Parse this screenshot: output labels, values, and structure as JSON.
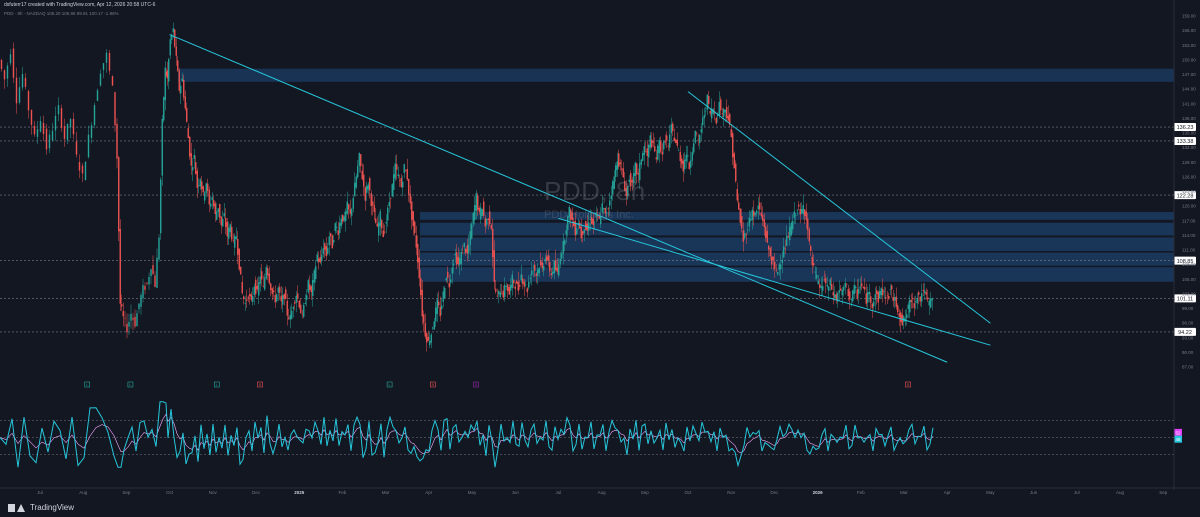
{
  "header": {
    "created_by": "dsfuterr17 created with TradingView.com, Apr 12, 2026 20:58 UTC-6",
    "symbol_legend": "PDD · 8h · NASDAQ  105.20  105.86  99.91  100.17  -1.96%"
  },
  "watermark": {
    "ticker": "PDD, 8h",
    "company": "PDD Holdings Inc."
  },
  "footer": {
    "brand": "TradingView"
  },
  "colors": {
    "background": "#131722",
    "bull": "#26a69a",
    "bear": "#ef5350",
    "trendline": "#26c6da",
    "zone": "#1e4a7d",
    "rsi": "#26c6da",
    "rsi_ma": "#ffffff",
    "signal_ma": "#9c27b0",
    "grid": "#787b86"
  },
  "chart_data": {
    "type": "candlestick",
    "title": "PDD, 8h",
    "ylim": [
      86,
      159
    ],
    "x_ticks": [
      "Jul",
      "Aug",
      "Sep",
      "Oct",
      "Nov",
      "Dec",
      "2025",
      "Feb",
      "Mar",
      "Apr",
      "May",
      "Jun",
      "Jul",
      "Aug",
      "Sep",
      "Oct",
      "Nov",
      "Dec",
      "2026",
      "Feb",
      "Mar",
      "Apr",
      "May",
      "Jun",
      "Jul",
      "Aug",
      "Sep",
      "Oct"
    ],
    "y_ticks": [
      159,
      156,
      153,
      150,
      147,
      144,
      141,
      138,
      135,
      132,
      129,
      126,
      123,
      120,
      117,
      114,
      111,
      108,
      105,
      102,
      99,
      96,
      93,
      90,
      87
    ],
    "price_levels": [
      {
        "label": "136.23",
        "value": 136.23
      },
      {
        "label": "133.38",
        "value": 133.38
      },
      {
        "label": "122.28",
        "value": 122.28
      },
      {
        "label": "108.85",
        "value": 108.85
      },
      {
        "label": "101.11",
        "value": 101.11
      },
      {
        "label": "94.22",
        "value": 94.22
      }
    ],
    "supply_demand_zones": [
      {
        "low": 145.5,
        "high": 148.2
      },
      {
        "low": 117.2,
        "high": 118.8
      },
      {
        "low": 114.0,
        "high": 116.6
      },
      {
        "low": 110.8,
        "high": 113.6
      },
      {
        "low": 107.8,
        "high": 110.5
      },
      {
        "low": 104.5,
        "high": 107.5
      }
    ],
    "trendlines": [
      {
        "from": [
          "Oct",
          155.2
        ],
        "to": [
          "Apr",
          88.0
        ],
        "to_date": "2026-04"
      },
      {
        "from": [
          "Jul",
          117.5
        ],
        "to": [
          "May",
          91.5
        ],
        "to_date": "2026-05"
      },
      {
        "from": [
          "Oct",
          143.5
        ],
        "to": [
          "May",
          96.0
        ],
        "to_date": "2026-05"
      }
    ],
    "price_path": [
      [
        0,
        150
      ],
      [
        6,
        146
      ],
      [
        12,
        152
      ],
      [
        18,
        142
      ],
      [
        24,
        147
      ],
      [
        30,
        140
      ],
      [
        36,
        134
      ],
      [
        42,
        138
      ],
      [
        48,
        132
      ],
      [
        54,
        136
      ],
      [
        60,
        140
      ],
      [
        66,
        134
      ],
      [
        72,
        138
      ],
      [
        78,
        130
      ],
      [
        84,
        126
      ],
      [
        90,
        134
      ],
      [
        96,
        141
      ],
      [
        102,
        148
      ],
      [
        108,
        151
      ],
      [
        114,
        144
      ],
      [
        118,
        130
      ],
      [
        121,
        100
      ],
      [
        124,
        97
      ],
      [
        128,
        95
      ],
      [
        132,
        98
      ],
      [
        136,
        96
      ],
      [
        140,
        100
      ],
      [
        144,
        103
      ],
      [
        148,
        104
      ],
      [
        152,
        108
      ],
      [
        156,
        104
      ],
      [
        160,
        114
      ],
      [
        163,
        137
      ],
      [
        166,
        148
      ],
      [
        168,
        146
      ],
      [
        171,
        154
      ],
      [
        174,
        156
      ],
      [
        177,
        150
      ],
      [
        180,
        144
      ],
      [
        183,
        146
      ],
      [
        186,
        140
      ],
      [
        189,
        134
      ],
      [
        192,
        128
      ],
      [
        195,
        130
      ],
      [
        198,
        124
      ],
      [
        201,
        126
      ],
      [
        204,
        122
      ],
      [
        207,
        125
      ],
      [
        210,
        120
      ],
      [
        213,
        122
      ],
      [
        216,
        118
      ],
      [
        219,
        120
      ],
      [
        222,
        116
      ],
      [
        225,
        118
      ],
      [
        228,
        114
      ],
      [
        231,
        116
      ],
      [
        234,
        112
      ],
      [
        237,
        114
      ],
      [
        240,
        108
      ],
      [
        243,
        102
      ],
      [
        246,
        100
      ],
      [
        249,
        102
      ],
      [
        252,
        100
      ],
      [
        255,
        104
      ],
      [
        258,
        102
      ],
      [
        261,
        106
      ],
      [
        264,
        103
      ],
      [
        267,
        108
      ],
      [
        270,
        105
      ],
      [
        273,
        102
      ],
      [
        276,
        101
      ],
      [
        279,
        103
      ],
      [
        282,
        100
      ],
      [
        285,
        102
      ],
      [
        288,
        98
      ],
      [
        291,
        97
      ],
      [
        294,
        100
      ],
      [
        297,
        102
      ],
      [
        300,
        100
      ],
      [
        303,
        97
      ],
      [
        306,
        101
      ],
      [
        309,
        104
      ],
      [
        312,
        102
      ],
      [
        315,
        106
      ],
      [
        318,
        110
      ],
      [
        321,
        108
      ],
      [
        324,
        112
      ],
      [
        327,
        110
      ],
      [
        330,
        114
      ],
      [
        333,
        112
      ],
      [
        336,
        116
      ],
      [
        339,
        115
      ],
      [
        342,
        118
      ],
      [
        345,
        117
      ],
      [
        348,
        120
      ],
      [
        351,
        118
      ],
      [
        354,
        122
      ],
      [
        357,
        126
      ],
      [
        360,
        130
      ],
      [
        363,
        126
      ],
      [
        366,
        122
      ],
      [
        369,
        125
      ],
      [
        372,
        121
      ],
      [
        375,
        118
      ],
      [
        378,
        115
      ],
      [
        381,
        118
      ],
      [
        384,
        114
      ],
      [
        387,
        117
      ],
      [
        390,
        121
      ],
      [
        393,
        124
      ],
      [
        396,
        128
      ],
      [
        399,
        126
      ],
      [
        402,
        124
      ],
      [
        405,
        128
      ],
      [
        408,
        126
      ],
      [
        411,
        120
      ],
      [
        414,
        116
      ],
      [
        417,
        112
      ],
      [
        420,
        106
      ],
      [
        423,
        98
      ],
      [
        426,
        94
      ],
      [
        429,
        92
      ],
      [
        432,
        94
      ],
      [
        435,
        97
      ],
      [
        438,
        100
      ],
      [
        441,
        98
      ],
      [
        444,
        102
      ],
      [
        447,
        106
      ],
      [
        450,
        104
      ],
      [
        453,
        108
      ],
      [
        456,
        110
      ],
      [
        459,
        108
      ],
      [
        462,
        110
      ],
      [
        465,
        112
      ],
      [
        468,
        110
      ],
      [
        471,
        114
      ],
      [
        474,
        118
      ],
      [
        477,
        122
      ],
      [
        480,
        118
      ],
      [
        483,
        120
      ],
      [
        486,
        116
      ],
      [
        489,
        118
      ],
      [
        492,
        116
      ],
      [
        495,
        104
      ],
      [
        498,
        101
      ],
      [
        501,
        103
      ],
      [
        504,
        102
      ],
      [
        507,
        104
      ],
      [
        510,
        102
      ],
      [
        513,
        105
      ],
      [
        516,
        104
      ],
      [
        519,
        103
      ],
      [
        522,
        106
      ],
      [
        525,
        104
      ],
      [
        528,
        103
      ],
      [
        531,
        106
      ],
      [
        534,
        108
      ],
      [
        537,
        106
      ],
      [
        540,
        108
      ],
      [
        543,
        107
      ],
      [
        546,
        110
      ],
      [
        549,
        108
      ],
      [
        552,
        106
      ],
      [
        555,
        108
      ],
      [
        558,
        106
      ],
      [
        561,
        110
      ],
      [
        564,
        112
      ],
      [
        567,
        116
      ],
      [
        570,
        119
      ],
      [
        573,
        117
      ],
      [
        576,
        115
      ],
      [
        579,
        117
      ],
      [
        582,
        114
      ],
      [
        585,
        116
      ],
      [
        588,
        115
      ],
      [
        591,
        118
      ],
      [
        594,
        116
      ],
      [
        597,
        118
      ],
      [
        600,
        117
      ],
      [
        603,
        120
      ],
      [
        606,
        118
      ],
      [
        609,
        120
      ],
      [
        612,
        123
      ],
      [
        615,
        126
      ],
      [
        618,
        130
      ],
      [
        621,
        128
      ],
      [
        624,
        126
      ],
      [
        627,
        122
      ],
      [
        630,
        126
      ],
      [
        633,
        124
      ],
      [
        636,
        128
      ],
      [
        639,
        126
      ],
      [
        642,
        130
      ],
      [
        645,
        132
      ],
      [
        648,
        130
      ],
      [
        651,
        134
      ],
      [
        654,
        132
      ],
      [
        657,
        130
      ],
      [
        660,
        133
      ],
      [
        663,
        131
      ],
      [
        666,
        134
      ],
      [
        669,
        132
      ],
      [
        672,
        136
      ],
      [
        675,
        134
      ],
      [
        678,
        132
      ],
      [
        681,
        130
      ],
      [
        684,
        128
      ],
      [
        687,
        131
      ],
      [
        690,
        128
      ],
      [
        693,
        132
      ],
      [
        696,
        135
      ],
      [
        699,
        133
      ],
      [
        702,
        136
      ],
      [
        705,
        139
      ],
      [
        708,
        142
      ],
      [
        711,
        139
      ],
      [
        714,
        140
      ],
      [
        717,
        138
      ],
      [
        720,
        141
      ],
      [
        723,
        139
      ],
      [
        726,
        140
      ],
      [
        729,
        138
      ],
      [
        732,
        134
      ],
      [
        735,
        128
      ],
      [
        738,
        121
      ],
      [
        741,
        117
      ],
      [
        744,
        113
      ],
      [
        747,
        115
      ],
      [
        750,
        117
      ],
      [
        753,
        119
      ],
      [
        756,
        118
      ],
      [
        759,
        120
      ],
      [
        762,
        118
      ],
      [
        765,
        116
      ],
      [
        768,
        112
      ],
      [
        771,
        110
      ],
      [
        774,
        108
      ],
      [
        777,
        106
      ],
      [
        780,
        108
      ],
      [
        783,
        110
      ],
      [
        786,
        112
      ],
      [
        789,
        114
      ],
      [
        792,
        116
      ],
      [
        795,
        118
      ],
      [
        798,
        120
      ],
      [
        801,
        118
      ],
      [
        804,
        120
      ],
      [
        807,
        118
      ],
      [
        810,
        112
      ],
      [
        813,
        108
      ],
      [
        816,
        106
      ],
      [
        819,
        104
      ],
      [
        822,
        103
      ],
      [
        825,
        105
      ],
      [
        828,
        103
      ],
      [
        831,
        104
      ],
      [
        834,
        102
      ],
      [
        837,
        101
      ],
      [
        840,
        103
      ],
      [
        843,
        102
      ],
      [
        846,
        104
      ],
      [
        849,
        102
      ],
      [
        852,
        101
      ],
      [
        855,
        103
      ],
      [
        858,
        102
      ],
      [
        861,
        104
      ],
      [
        864,
        103
      ],
      [
        867,
        101
      ],
      [
        870,
        102
      ],
      [
        873,
        100
      ],
      [
        876,
        102
      ],
      [
        879,
        101
      ],
      [
        882,
        103
      ],
      [
        885,
        102
      ],
      [
        888,
        101
      ],
      [
        891,
        103
      ],
      [
        894,
        101
      ],
      [
        897,
        100
      ],
      [
        900,
        98
      ],
      [
        903,
        96
      ],
      [
        906,
        97
      ],
      [
        909,
        99
      ],
      [
        912,
        101
      ],
      [
        915,
        100
      ],
      [
        918,
        102
      ],
      [
        921,
        101
      ],
      [
        924,
        103
      ],
      [
        927,
        101
      ],
      [
        930,
        100
      ],
      [
        933,
        101
      ]
    ],
    "oscillator": {
      "type": "rsi",
      "ylim": [
        0,
        100
      ],
      "levels": [
        70,
        50,
        30
      ],
      "current_values": [
        "52",
        "48"
      ]
    },
    "signal_markers": [
      {
        "label": "L",
        "color": "#26a69a",
        "x": "Sep"
      },
      {
        "label": "S",
        "color": "#ef5350",
        "x": "Dec"
      },
      {
        "label": "L",
        "color": "#26a69a",
        "x": "Mar"
      },
      {
        "label": "S",
        "color": "#ef5350",
        "x": "Apr"
      },
      {
        "label": "L",
        "color": "#26a69a",
        "x": "Aug"
      },
      {
        "label": "L",
        "color": "#26a69a",
        "x": "Nov"
      },
      {
        "label": "S",
        "color": "#ef5350",
        "x": "Mar"
      },
      {
        "label": "S",
        "color": "#9c27b0",
        "x": "May"
      }
    ]
  }
}
